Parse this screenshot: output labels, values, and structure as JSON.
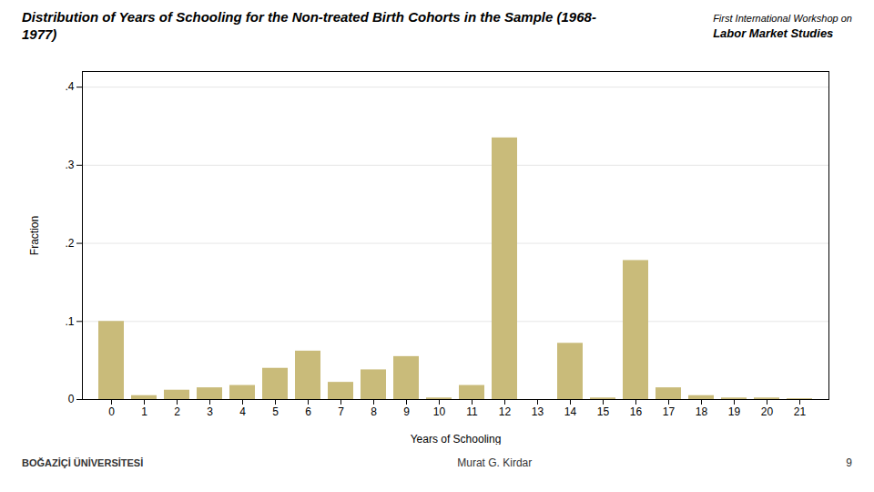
{
  "chart_data": {
    "type": "bar",
    "title": "Distribution of Years of Schooling for the Non-treated Birth Cohorts in the Sample (1968-1977)",
    "xlabel": "Years of Schooling",
    "ylabel": "Fraction",
    "categories": [
      0,
      1,
      2,
      3,
      4,
      5,
      6,
      7,
      8,
      9,
      10,
      11,
      12,
      13,
      14,
      15,
      16,
      17,
      18,
      19,
      20,
      21
    ],
    "values": [
      0.1,
      0.005,
      0.012,
      0.015,
      0.018,
      0.04,
      0.062,
      0.022,
      0.038,
      0.055,
      0.002,
      0.018,
      0.335,
      0.0,
      0.072,
      0.002,
      0.178,
      0.015,
      0.005,
      0.002,
      0.002,
      0.001
    ],
    "color": "#C9BB7A",
    "ylim": [
      0,
      0.42
    ],
    "yticks": [
      0,
      {
        "value": 0.1,
        "label": ".1"
      },
      {
        "value": 0.2,
        "label": ".2"
      },
      {
        "value": 0.3,
        "label": ".3"
      },
      {
        "value": 0.4,
        "label": ".4"
      }
    ],
    "grid": true,
    "annotations": [
      "First International Workshop on",
      "Labor Market Studies",
      "BOĞAZİÇİ ÜNİVERSİTESİ",
      "Murat G. Kirdar",
      "9"
    ]
  }
}
